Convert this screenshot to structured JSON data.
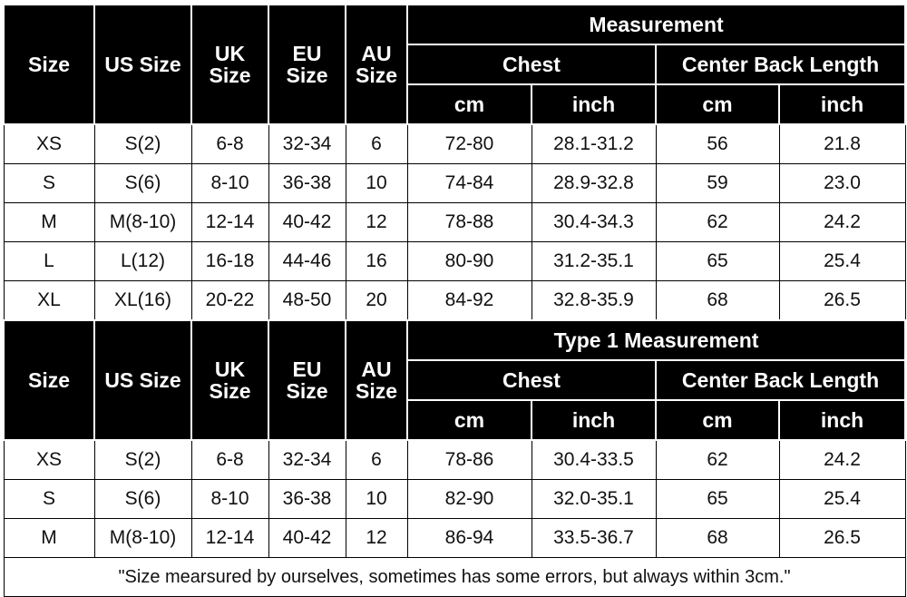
{
  "tables": [
    {
      "headers": {
        "size": "Size",
        "us_size": "US Size",
        "uk_size": "UK Size",
        "eu_size": "EU Size",
        "au_size": "AU Size",
        "group": "Measurement",
        "chest": "Chest",
        "center_back_length": "Center Back Length",
        "units": [
          "cm",
          "inch",
          "cm",
          "inch"
        ]
      },
      "rows": [
        [
          "XS",
          "S(2)",
          "6-8",
          "32-34",
          "6",
          "72-80",
          "28.1-31.2",
          "56",
          "21.8"
        ],
        [
          "S",
          "S(6)",
          "8-10",
          "36-38",
          "10",
          "74-84",
          "28.9-32.8",
          "59",
          "23.0"
        ],
        [
          "M",
          "M(8-10)",
          "12-14",
          "40-42",
          "12",
          "78-88",
          "30.4-34.3",
          "62",
          "24.2"
        ],
        [
          "L",
          "L(12)",
          "16-18",
          "44-46",
          "16",
          "80-90",
          "31.2-35.1",
          "65",
          "25.4"
        ],
        [
          "XL",
          "XL(16)",
          "20-22",
          "48-50",
          "20",
          "84-92",
          "32.8-35.9",
          "68",
          "26.5"
        ]
      ]
    },
    {
      "headers": {
        "size": "Size",
        "us_size": "US Size",
        "uk_size": "UK Size",
        "eu_size": "EU Size",
        "au_size": "AU Size",
        "group": "Type 1 Measurement",
        "chest": "Chest",
        "center_back_length": "Center Back Length",
        "units": [
          "cm",
          "inch",
          "cm",
          "inch"
        ]
      },
      "rows": [
        [
          "XS",
          "S(2)",
          "6-8",
          "32-34",
          "6",
          "78-86",
          "30.4-33.5",
          "62",
          "24.2"
        ],
        [
          "S",
          "S(6)",
          "8-10",
          "36-38",
          "10",
          "82-90",
          "32.0-35.1",
          "65",
          "25.4"
        ],
        [
          "M",
          "M(8-10)",
          "12-14",
          "40-42",
          "12",
          "86-94",
          "33.5-36.7",
          "68",
          "26.5"
        ]
      ]
    }
  ],
  "note": "\"Size mearsured by ourselves, sometimes has some errors, but always within 3cm.\""
}
